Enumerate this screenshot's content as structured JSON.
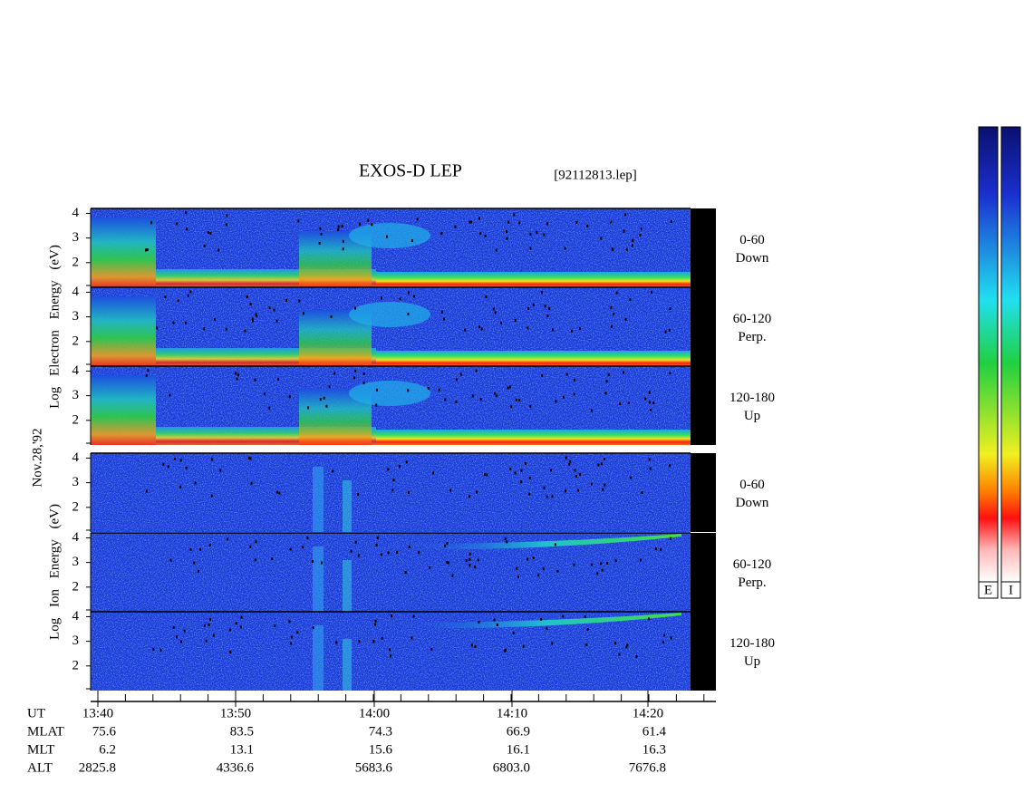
{
  "chart_data": {
    "type": "spectrogram",
    "title": "EXOS-D LEP",
    "subtitle": "[92112813.lep]",
    "date_label": "Nov.28,'92",
    "ylim": [
      1,
      4.2
    ],
    "yticks": [
      2,
      3,
      4
    ],
    "groups": [
      {
        "ylabel": "Log Electron Energy (eV)",
        "species": "electron",
        "panels": [
          {
            "label": [
              "0-60",
              "Down"
            ]
          },
          {
            "label": [
              "60-120",
              "Perp."
            ]
          },
          {
            "label": [
              "120-180",
              "Up"
            ]
          }
        ]
      },
      {
        "ylabel": "Log Ion Energy (eV)",
        "species": "ion",
        "panels": [
          {
            "label": [
              "0-60",
              "Down"
            ]
          },
          {
            "label": [
              "60-120",
              "Perp."
            ]
          },
          {
            "label": [
              "120-180",
              "Up"
            ]
          }
        ]
      }
    ],
    "x_rows": [
      {
        "label": "UT",
        "values": [
          "13:40",
          "13:50",
          "14:00",
          "14:10",
          "14:20"
        ]
      },
      {
        "label": "MLAT",
        "values": [
          "75.6",
          "83.5",
          "74.3",
          "66.9",
          "61.4"
        ]
      },
      {
        "label": "MLT",
        "values": [
          "6.2",
          "13.1",
          "15.6",
          "16.1",
          "16.3"
        ]
      },
      {
        "label": "ALT",
        "values": [
          "2825.8",
          "4336.6",
          "5683.6",
          "6803.0",
          "7676.8"
        ]
      }
    ],
    "colorbar_labels": [
      "E",
      "I"
    ]
  }
}
